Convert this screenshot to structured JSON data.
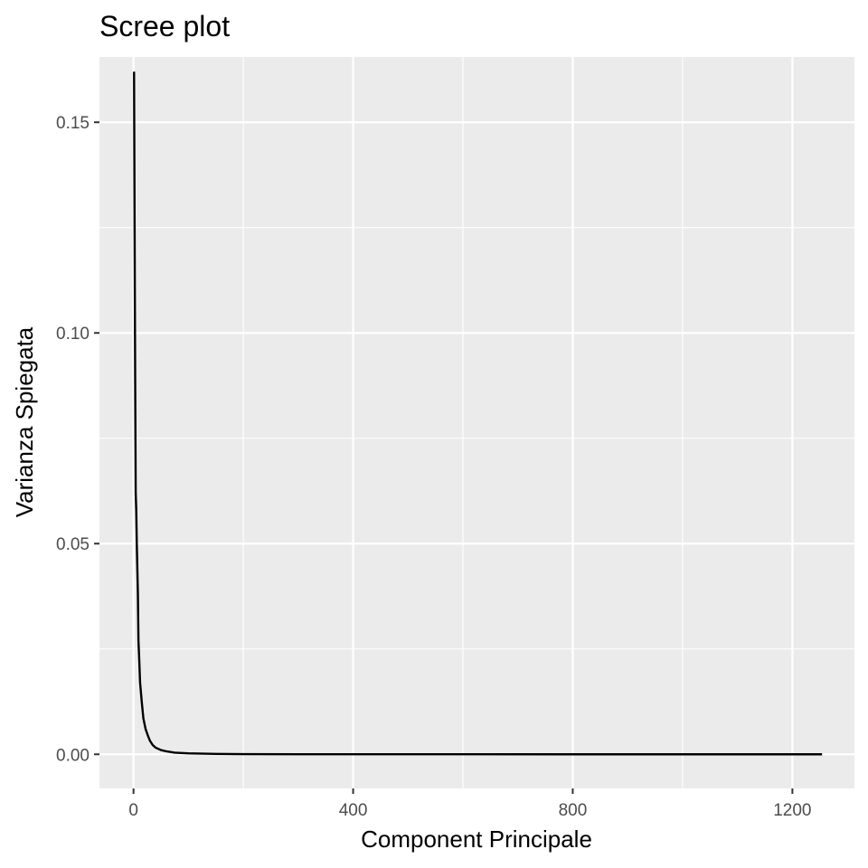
{
  "chart_data": {
    "type": "line",
    "title": "Scree plot",
    "xlabel": "Component Principale",
    "ylabel": "Varianza Spiegata",
    "xlim": [
      -62,
      1313
    ],
    "ylim": [
      -0.0081,
      0.1655
    ],
    "x_ticks": [
      0,
      400,
      800,
      1200
    ],
    "x_tick_labels": [
      "0",
      "400",
      "800",
      "1200"
    ],
    "x_minor_gridlines": [
      200,
      600,
      1000
    ],
    "y_ticks": [
      0.0,
      0.05,
      0.1,
      0.15
    ],
    "y_tick_labels": [
      "0.00",
      "0.05",
      "0.10",
      "0.15"
    ],
    "y_minor_gridlines": [
      0.025,
      0.075,
      0.125
    ],
    "grid": true,
    "legend": "none",
    "colors": {
      "panel_background": "#ebebeb",
      "gridline": "#ffffff",
      "line": "#000000",
      "tick_text": "#4d4d4d"
    },
    "series": [
      {
        "x": [
          1,
          2,
          3,
          4,
          5,
          6,
          7,
          8,
          9,
          10,
          12,
          15,
          18,
          22,
          26,
          30,
          35,
          40,
          50,
          60,
          75,
          100,
          150,
          200,
          300,
          400,
          600,
          800,
          1000,
          1254
        ],
        "y": [
          0.162,
          0.125,
          0.09,
          0.062,
          0.058,
          0.05,
          0.044,
          0.038,
          0.027,
          0.024,
          0.017,
          0.0125,
          0.0085,
          0.006,
          0.0045,
          0.0032,
          0.0022,
          0.0016,
          0.001,
          0.0007,
          0.0004,
          0.00022,
          0.0001,
          5e-05,
          2e-05,
          1e-05,
          5e-06,
          2e-06,
          1e-06,
          0.0
        ]
      }
    ]
  }
}
